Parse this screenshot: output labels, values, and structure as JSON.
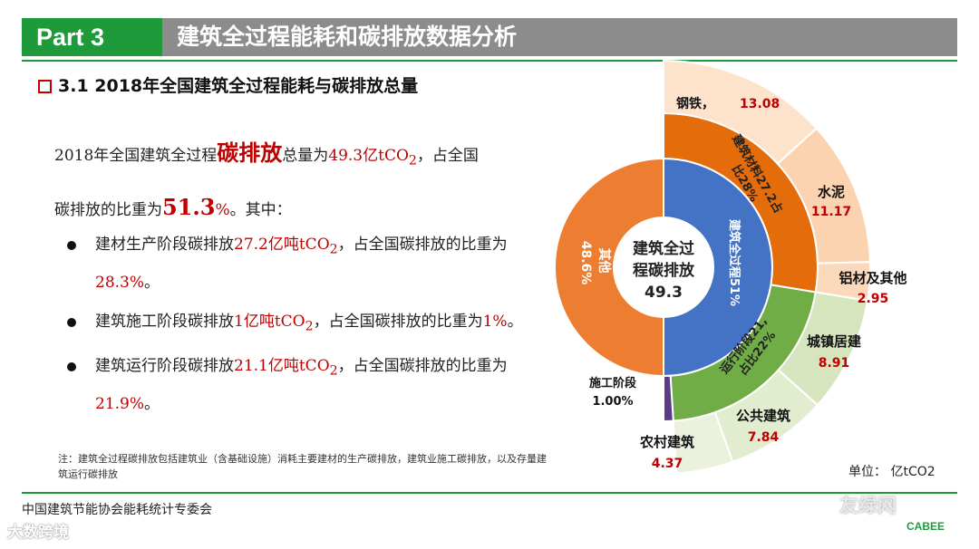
{
  "header": {
    "part": "Part 3",
    "title": "建筑全过程能耗和碳排放数据分析"
  },
  "subtitle": "3.1 2018年全国建筑全过程能耗与碳排放总量",
  "intro": {
    "t1": "2018年全国建筑全过程",
    "t2": "碳排放",
    "t3": "总量为",
    "t4": "49.3亿tCO",
    "t4sub": "2",
    "t5": "，占全国",
    "t6": "碳排放的比重为",
    "t7": "51.3",
    "t8": "%",
    "t9": "。其中："
  },
  "bullets": [
    {
      "a": "建材生产阶段碳排放",
      "b": "27.2亿吨tCO",
      "sub": "2",
      "c": "，占全国碳排放的比重为",
      "d": "28.3%",
      "e": "。"
    },
    {
      "a": "建筑施工阶段碳排放",
      "b": "1亿吨tCO",
      "sub": "2",
      "c": "，占全国碳排放的比重为",
      "d": "1%",
      "e": "。"
    },
    {
      "a": "建筑运行阶段碳排放",
      "b": "21.1亿吨tCO",
      "sub": "2",
      "c": "，占全国碳排放的比重为",
      "d": "21.9%",
      "e": "。"
    }
  ],
  "note": "注：建筑全过程碳排放包括建筑业（含基础设施）消耗主要建材的生产碳排放，建筑业施工碳排放，以及存量建筑运行碳排放",
  "unit": "单位：  亿tCO2",
  "footer": "中国建筑节能协会能耗统计专委会",
  "watermark_left": "大数跨境",
  "watermark_right": "友绿网",
  "logo_text": "CABEE",
  "colors": {
    "green": "#1f9a3a",
    "red": "#c00000",
    "blue": "#4472c4",
    "orange_inner": "#ed7d31",
    "orange_ring": "#e46c0a",
    "olive": "#70ad47",
    "purple": "#5b3c88"
  },
  "chart_data": {
    "type": "pie",
    "title": "",
    "center": {
      "label": "建筑全过程碳排放",
      "value": "49.3"
    },
    "inner": [
      {
        "name": "建筑全过程",
        "label": "建筑全过程51%",
        "share": 51.3
      },
      {
        "name": "其他",
        "label": "其他 48.6%",
        "share": 48.6
      }
    ],
    "middle": [
      {
        "name": "建筑材料",
        "label": "建筑材料27.2，占比28%",
        "value": 27.2,
        "share": 28.3
      },
      {
        "name": "施工阶段",
        "label": "施工阶段 1.00%",
        "value": 1.0,
        "share": 1.0
      },
      {
        "name": "运行阶段",
        "label": "运行阶段21.1，占比22%",
        "value": 21.1,
        "share": 21.9
      }
    ],
    "outer": [
      {
        "name": "钢铁",
        "value": 13.08
      },
      {
        "name": "水泥",
        "value": 11.17
      },
      {
        "name": "铝材及其他",
        "value": 2.95
      },
      {
        "name": "城镇居建",
        "value": 8.91
      },
      {
        "name": "公共建筑",
        "value": 7.84
      },
      {
        "name": "农村建筑",
        "value": 4.37
      }
    ],
    "labels": {
      "middle_materials_1": "建筑材料27.2占",
      "middle_materials_2": "比28%",
      "middle_operation_1": "运行阶段21,",
      "middle_operation_2": "占比22%",
      "inner_whole": "建筑全过程51%",
      "inner_other_1": "其他",
      "inner_other_2": "48.6%",
      "construction_name": "施工阶段",
      "construction_share": "1.00%",
      "center_1": "建筑全过",
      "center_2": "程碳排放",
      "steel_name": "钢铁，",
      "steel_value": "13.08",
      "cement_name": "水泥",
      "cement_value": "11.17",
      "alu_name": "铝材及其他",
      "alu_value": "2.95",
      "urban_name": "城镇居建",
      "urban_value": "8.91",
      "public_name": "公共建筑",
      "public_value": "7.84",
      "rural_name": "农村建筑",
      "rural_value": "4.37"
    }
  }
}
